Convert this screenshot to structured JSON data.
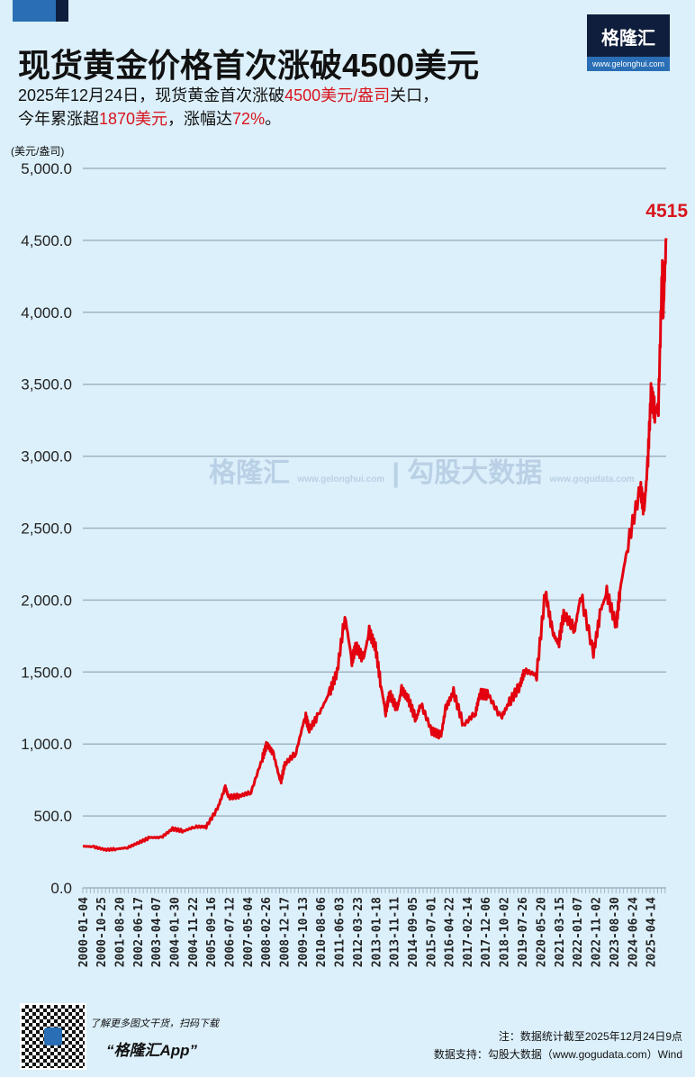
{
  "header": {
    "title": "现货黄金价格首次涨破4500美元",
    "sub1": {
      "a": "2025年12月24日，现货黄金首次涨破",
      "b": "4500美元/盎司",
      "c": "关口，"
    },
    "sub2": {
      "a": "今年累涨超",
      "b": "1870美元",
      "c": "，涨幅达",
      "d": "72%",
      "e": "。"
    },
    "logo": "格隆汇",
    "logo_url": "www.gelonghui.com"
  },
  "watermark": {
    "left": "格隆汇",
    "left_url": "www.gelonghui.com",
    "right": "勾股大数据",
    "right_url": "www.gogudata.com"
  },
  "chart_data": {
    "type": "line",
    "title": "",
    "ylabel": "(美元/盎司)",
    "xlabel": "",
    "ylim": [
      0,
      5000
    ],
    "yticks": [
      "0.0",
      "500.0",
      "1,000.0",
      "1,500.0",
      "2,000.0",
      "2,500.0",
      "3,000.0",
      "3,500.0",
      "4,000.0",
      "4,500.0",
      "5,000.0"
    ],
    "xticks": [
      "2000-01-04",
      "2000-10-25",
      "2001-08-20",
      "2002-06-17",
      "2003-04-07",
      "2004-01-30",
      "2004-11-22",
      "2005-09-16",
      "2006-07-12",
      "2007-05-04",
      "2008-02-26",
      "2008-12-17",
      "2009-10-13",
      "2010-08-06",
      "2011-06-03",
      "2012-03-23",
      "2013-01-18",
      "2013-11-11",
      "2014-09-05",
      "2015-07-01",
      "2016-04-22",
      "2017-02-14",
      "2017-12-06",
      "2018-10-02",
      "2019-07-26",
      "2020-05-20",
      "2021-03-15",
      "2022-01-07",
      "2022-11-02",
      "2023-08-30",
      "2024-06-24",
      "2025-04-14"
    ],
    "grid": true,
    "color": "#e3000f",
    "annotation": "4515",
    "series": [
      {
        "x": [
          "2000-01-04",
          "2000-07-01",
          "2001-01-01",
          "2001-07-01",
          "2002-01-01",
          "2002-07-01",
          "2003-01-01",
          "2003-07-01",
          "2004-01-01",
          "2004-07-01",
          "2005-01-01",
          "2005-07-01",
          "2006-01-01",
          "2006-05-10",
          "2006-07-01",
          "2007-01-01",
          "2007-07-01",
          "2008-01-01",
          "2008-03-15",
          "2008-07-01",
          "2008-10-25",
          "2009-01-01",
          "2009-07-01",
          "2009-12-01",
          "2010-02-01",
          "2010-07-01",
          "2011-01-01",
          "2011-05-01",
          "2011-09-05",
          "2011-12-28",
          "2012-03-01",
          "2012-07-01",
          "2012-10-05",
          "2013-01-15",
          "2013-04-15",
          "2013-06-28",
          "2013-09-01",
          "2014-01-01",
          "2014-03-15",
          "2014-07-01",
          "2014-11-05",
          "2015-01-20",
          "2015-07-20",
          "2015-12-17",
          "2016-03-01",
          "2016-07-06",
          "2016-12-15",
          "2017-07-01",
          "2017-09-08",
          "2018-01-25",
          "2018-08-16",
          "2019-01-01",
          "2019-06-25",
          "2019-09-04",
          "2020-03-19",
          "2020-08-06",
          "2020-11-30",
          "2021-03-08",
          "2021-06-01",
          "2021-12-01",
          "2022-03-08",
          "2022-09-28",
          "2023-01-26",
          "2023-05-03",
          "2023-10-05",
          "2023-12-04",
          "2024-04-12",
          "2024-10-30",
          "2024-12-30",
          "2025-02-24",
          "2025-04-21",
          "2025-06-30",
          "2025-08-20",
          "2025-10-20",
          "2025-11-05",
          "2025-12-24"
        ],
        "values": [
          290,
          285,
          265,
          270,
          280,
          315,
          350,
          350,
          410,
          395,
          425,
          425,
          550,
          700,
          630,
          640,
          665,
          900,
          1000,
          930,
          730,
          860,
          940,
          1200,
          1100,
          1200,
          1360,
          1500,
          1890,
          1580,
          1680,
          1590,
          1780,
          1670,
          1400,
          1220,
          1350,
          1240,
          1380,
          1310,
          1170,
          1280,
          1090,
          1060,
          1250,
          1360,
          1130,
          1220,
          1350,
          1340,
          1180,
          1290,
          1410,
          1510,
          1480,
          2060,
          1780,
          1690,
          1900,
          1800,
          2040,
          1630,
          1930,
          2050,
          1820,
          2070,
          2390,
          2780,
          2620,
          2930,
          3430,
          3300,
          3350,
          4300,
          3980,
          4515
        ]
      }
    ]
  },
  "footer": {
    "qr_text": "了解更多图文干货，扫码下载",
    "app": "“格隆汇App”",
    "note": "注：数据统计截至2025年12月24日9点",
    "source": "数据支持：勾股大数据（www.gogudata.com）Wind"
  }
}
